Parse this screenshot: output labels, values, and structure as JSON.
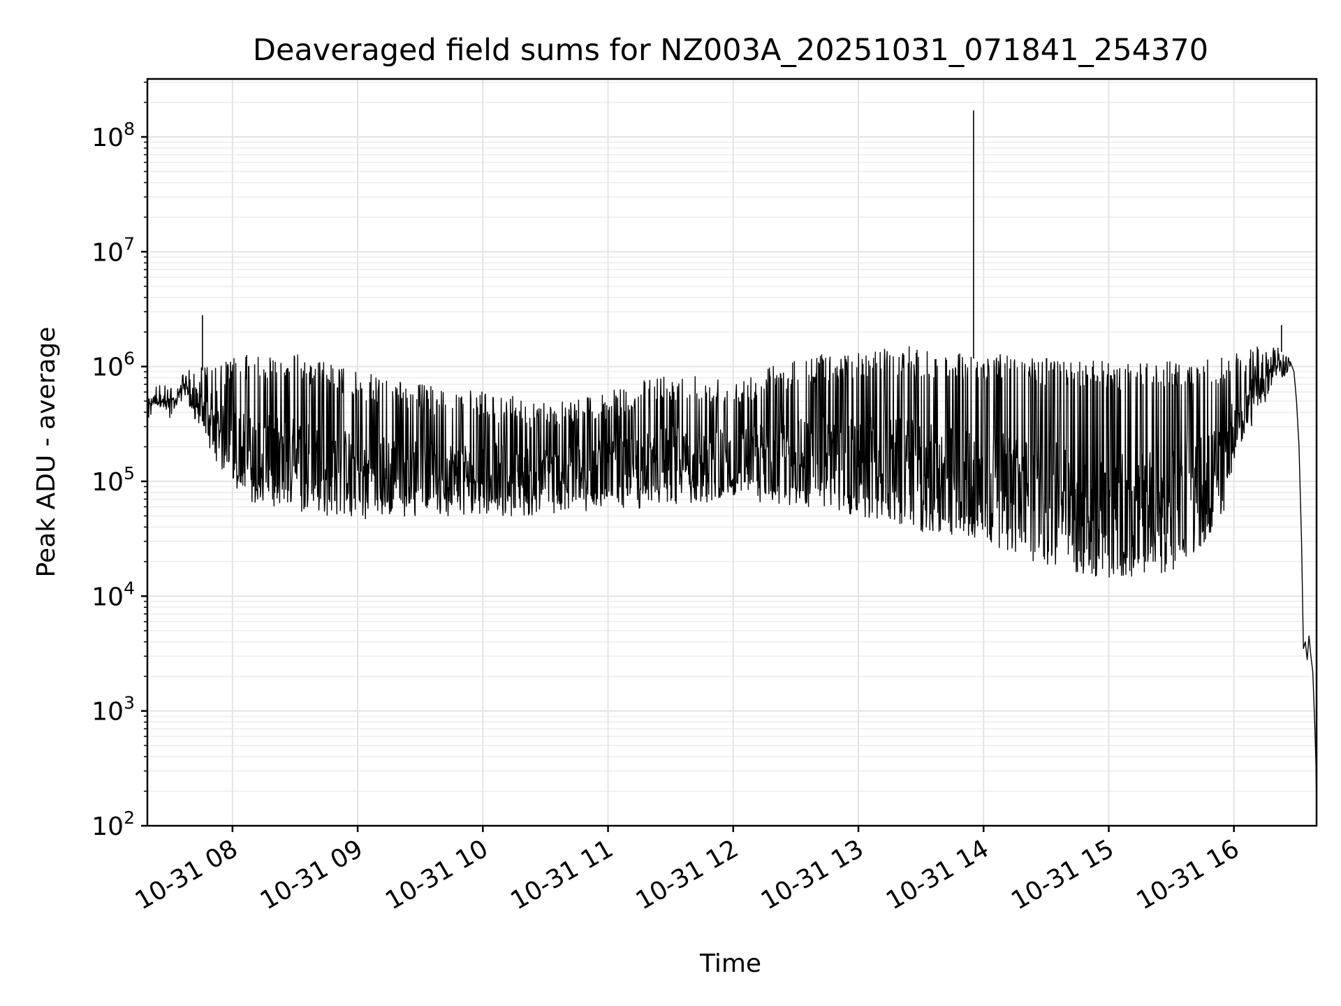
{
  "chart_data": {
    "type": "line",
    "title": "Deaveraged field sums for NZ003A_20251031_071841_254370",
    "xlabel": "Time",
    "ylabel": "Peak ADU - average",
    "yscale": "log",
    "ylim": [
      100,
      320000000
    ],
    "xlim_hours": [
      7.32,
      16.66
    ],
    "grid": true,
    "x_ticks": [
      {
        "value": 8,
        "label": "10-31 08"
      },
      {
        "value": 9,
        "label": "10-31 09"
      },
      {
        "value": 10,
        "label": "10-31 10"
      },
      {
        "value": 11,
        "label": "10-31 11"
      },
      {
        "value": 12,
        "label": "10-31 12"
      },
      {
        "value": 13,
        "label": "10-31 13"
      },
      {
        "value": 14,
        "label": "10-31 14"
      },
      {
        "value": 15,
        "label": "10-31 15"
      },
      {
        "value": 16,
        "label": "10-31 16"
      }
    ],
    "y_ticks": [
      {
        "value": 100,
        "base": "10",
        "exp": "2"
      },
      {
        "value": 1000,
        "base": "10",
        "exp": "3"
      },
      {
        "value": 10000,
        "base": "10",
        "exp": "4"
      },
      {
        "value": 100000,
        "base": "10",
        "exp": "5"
      },
      {
        "value": 1000000,
        "base": "10",
        "exp": "6"
      },
      {
        "value": 10000000,
        "base": "10",
        "exp": "7"
      },
      {
        "value": 100000000,
        "base": "10",
        "exp": "8"
      }
    ],
    "series": [
      {
        "name": "deaveraged field sum",
        "color": "#000000",
        "envelope": [
          {
            "t": 7.32,
            "hi": 600000,
            "lo": 450000
          },
          {
            "t": 7.55,
            "hi": 620000,
            "lo": 430000
          },
          {
            "t": 7.6,
            "hi": 900000,
            "lo": 600000
          },
          {
            "t": 7.7,
            "hi": 1100000,
            "lo": 300000
          },
          {
            "t": 7.8,
            "hi": 1000000,
            "lo": 200000
          },
          {
            "t": 8.0,
            "hi": 1200000,
            "lo": 90000
          },
          {
            "t": 8.2,
            "hi": 1300000,
            "lo": 60000
          },
          {
            "t": 8.5,
            "hi": 1300000,
            "lo": 55000
          },
          {
            "t": 9.0,
            "hi": 900000,
            "lo": 45000
          },
          {
            "t": 9.5,
            "hi": 700000,
            "lo": 50000
          },
          {
            "t": 10.0,
            "hi": 600000,
            "lo": 50000
          },
          {
            "t": 10.5,
            "hi": 500000,
            "lo": 50000
          },
          {
            "t": 11.0,
            "hi": 600000,
            "lo": 55000
          },
          {
            "t": 11.5,
            "hi": 900000,
            "lo": 60000
          },
          {
            "t": 12.0,
            "hi": 800000,
            "lo": 65000
          },
          {
            "t": 12.5,
            "hi": 1200000,
            "lo": 60000
          },
          {
            "t": 13.0,
            "hi": 1400000,
            "lo": 50000
          },
          {
            "t": 13.4,
            "hi": 1500000,
            "lo": 40000
          },
          {
            "t": 13.5,
            "hi": 1400000,
            "lo": 35000
          },
          {
            "t": 14.0,
            "hi": 1300000,
            "lo": 30000
          },
          {
            "t": 14.5,
            "hi": 1200000,
            "lo": 18000
          },
          {
            "t": 15.0,
            "hi": 1100000,
            "lo": 14000
          },
          {
            "t": 15.5,
            "hi": 1100000,
            "lo": 16000
          },
          {
            "t": 15.9,
            "hi": 1200000,
            "lo": 40000
          },
          {
            "t": 16.0,
            "hi": 1300000,
            "lo": 150000
          },
          {
            "t": 16.2,
            "hi": 1500000,
            "lo": 400000
          },
          {
            "t": 16.35,
            "hi": 1600000,
            "lo": 700000
          },
          {
            "t": 16.45,
            "hi": 1300000,
            "lo": 900000
          }
        ],
        "tail": [
          {
            "t": 16.45,
            "v": 1100000
          },
          {
            "t": 16.48,
            "v": 900000
          },
          {
            "t": 16.5,
            "v": 500000
          },
          {
            "t": 16.52,
            "v": 200000
          },
          {
            "t": 16.54,
            "v": 30000
          },
          {
            "t": 16.555,
            "v": 3500
          },
          {
            "t": 16.57,
            "v": 4000
          },
          {
            "t": 16.585,
            "v": 2800
          },
          {
            "t": 16.6,
            "v": 4500
          },
          {
            "t": 16.615,
            "v": 3000
          },
          {
            "t": 16.63,
            "v": 2200
          },
          {
            "t": 16.645,
            "v": 800
          },
          {
            "t": 16.655,
            "v": 350
          },
          {
            "t": 16.66,
            "v": 150
          }
        ],
        "spikes": [
          {
            "t": 7.76,
            "v": 2800000
          },
          {
            "t": 13.92,
            "v": 170000000
          },
          {
            "t": 16.38,
            "v": 2300000
          }
        ]
      }
    ]
  }
}
